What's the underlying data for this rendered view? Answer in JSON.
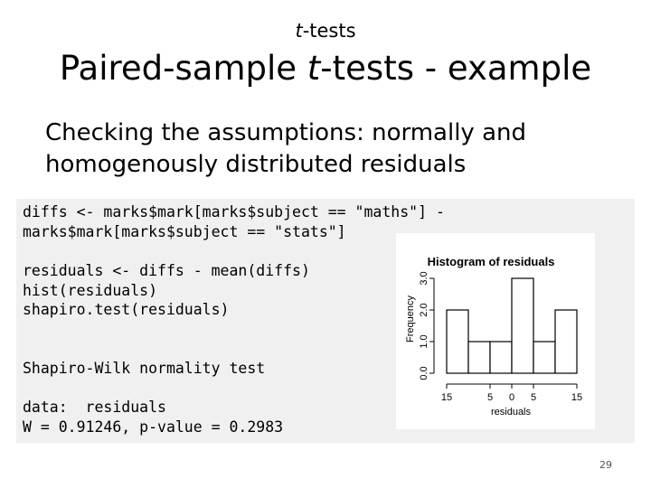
{
  "slide": {
    "header_italic": "t",
    "header_rest": "-tests",
    "title_pre": "Paired-sample ",
    "title_italic": "t",
    "title_post": "-tests - example",
    "subtitle": "Checking the assumptions: normally and homogenously distributed residuals",
    "page_number": "29"
  },
  "code": {
    "block1": "diffs <- marks$mark[marks$subject == \"maths\"] -\nmarks$mark[marks$subject == \"stats\"]",
    "block2": "residuals <- diffs - mean(diffs)\nhist(residuals)\nshapiro.test(residuals)",
    "block3": "Shapiro-Wilk normality test",
    "block4": "data:  residuals\nW = 0.91246, p-value = 0.2983"
  },
  "chart_data": {
    "type": "bar",
    "title": "Histogram of residuals",
    "xlabel": "residuals",
    "ylabel": "Frequency",
    "bins": [
      [
        -15,
        -10
      ],
      [
        -10,
        -5
      ],
      [
        -5,
        0
      ],
      [
        0,
        5
      ],
      [
        5,
        10
      ],
      [
        10,
        15
      ]
    ],
    "values": [
      2,
      1,
      1,
      3,
      1,
      2
    ],
    "x_tick_labels": [
      "15",
      "5",
      "0",
      "5",
      "15"
    ],
    "x_tick_values": [
      -15,
      -5,
      0,
      5,
      15
    ],
    "y_ticks": [
      "0.0",
      "1.0",
      "2.0",
      "3.0"
    ],
    "ylim": [
      0,
      3
    ],
    "xlim": [
      -15,
      15
    ]
  }
}
